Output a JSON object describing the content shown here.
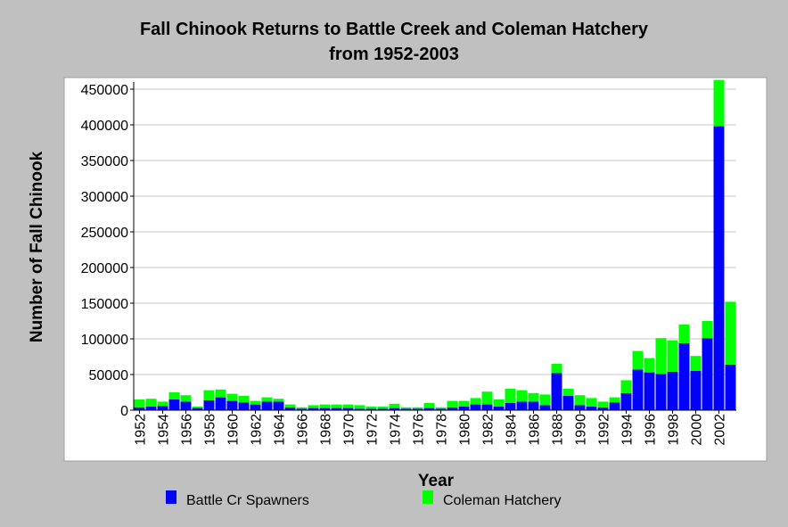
{
  "chart_data": {
    "type": "bar",
    "stacked": true,
    "title": "Fall Chinook Returns to Battle Creek and Coleman Hatchery",
    "subtitle": "from 1952-2003",
    "xlabel": "Year",
    "ylabel": "Number of Fall Chinook",
    "ylim": [
      0,
      460000
    ],
    "yticks": [
      "0",
      "50000",
      "100000",
      "150000",
      "200000",
      "250000",
      "300000",
      "350000",
      "400000",
      "450000"
    ],
    "xtick_labels": [
      "1952",
      "1954",
      "1956",
      "1958",
      "1960",
      "1962",
      "1964",
      "1966",
      "1968",
      "1970",
      "1972",
      "1974",
      "1976",
      "1978",
      "1980",
      "1982",
      "1984",
      "1986",
      "1988",
      "1990",
      "1992",
      "1994",
      "1996",
      "1998",
      "2000",
      "2002"
    ],
    "grid": true,
    "legend_position": "bottom",
    "categories": [
      "1952",
      "1953",
      "1954",
      "1955",
      "1956",
      "1957",
      "1958",
      "1959",
      "1960",
      "1961",
      "1962",
      "1963",
      "1964",
      "1965",
      "1966",
      "1967",
      "1968",
      "1969",
      "1970",
      "1971",
      "1972",
      "1973",
      "1974",
      "1975",
      "1976",
      "1977",
      "1978",
      "1979",
      "1980",
      "1981",
      "1982",
      "1983",
      "1984",
      "1985",
      "1986",
      "1987",
      "1988",
      "1989",
      "1990",
      "1991",
      "1992",
      "1993",
      "1994",
      "1995",
      "1996",
      "1997",
      "1998",
      "1999",
      "2000",
      "2001",
      "2002",
      "2003"
    ],
    "series": [
      {
        "name": "Battle Cr Spawners",
        "color": "#0000ff",
        "values": [
          4000,
          5000,
          6000,
          15000,
          12000,
          3000,
          14000,
          18000,
          13000,
          11000,
          8000,
          12000,
          12000,
          4000,
          2000,
          3000,
          3000,
          3000,
          3000,
          2000,
          2000,
          2000,
          3000,
          2000,
          2000,
          3000,
          2000,
          4000,
          5000,
          8000,
          8000,
          5000,
          10000,
          12000,
          12000,
          7000,
          52000,
          20000,
          7000,
          5000,
          4000,
          11000,
          24000,
          57000,
          53000,
          51000,
          54000,
          94000,
          55000,
          101000,
          398000,
          64000
        ]
      },
      {
        "name": "Coleman Hatchery",
        "color": "#00ff00",
        "values": [
          11000,
          11000,
          6000,
          10000,
          9000,
          2000,
          14000,
          11000,
          10000,
          9000,
          5000,
          6000,
          4000,
          4000,
          2000,
          4000,
          5000,
          5000,
          5000,
          5000,
          3000,
          3000,
          6000,
          2000,
          2000,
          7000,
          2000,
          9000,
          8000,
          9000,
          18000,
          10000,
          20000,
          16000,
          12000,
          15000,
          13000,
          10000,
          14000,
          12000,
          8000,
          7000,
          18000,
          26000,
          20000,
          50000,
          44000,
          26000,
          21000,
          24000,
          65000,
          88000
        ]
      }
    ]
  }
}
